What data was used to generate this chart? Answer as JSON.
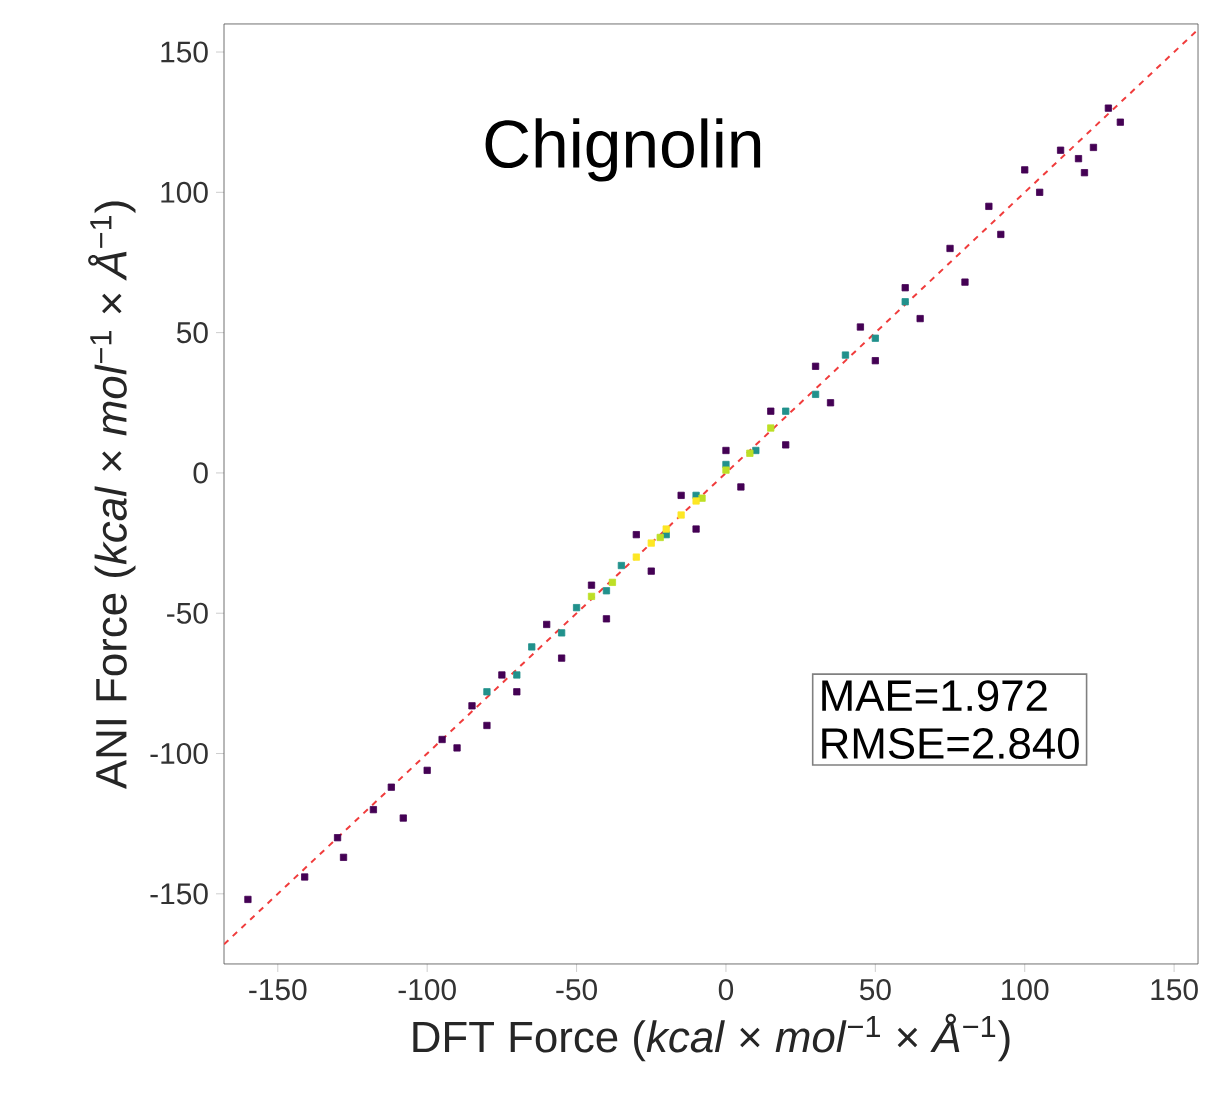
{
  "chart_data": {
    "type": "scatter",
    "title": "Chignolin",
    "xlabel": "DFT Force (*kcal* × *mol*$^{−1}$ × *Å*$^{−1}$)",
    "ylabel": "ANI Force (*kcal* × *mol*$^{−1}$ × *Å*$^{−1}$)",
    "annotations": [
      "MAE=1.972",
      "RMSE=2.840"
    ],
    "xlim": [
      -168,
      158
    ],
    "ylim": [
      -175,
      160
    ],
    "xticks": [
      -150,
      -100,
      -50,
      0,
      50,
      100,
      150
    ],
    "yticks": [
      -150,
      -100,
      -50,
      0,
      50,
      100,
      150
    ],
    "grid": false,
    "marker": "square",
    "series": [
      {
        "color": "#440154",
        "x": [
          -160,
          -141,
          -130,
          -128,
          -118,
          -112,
          -108,
          -100,
          -95,
          -90,
          -85,
          -80,
          -75,
          -70,
          -60,
          -55,
          -45,
          -40,
          -30,
          -25,
          -15,
          -10,
          0,
          5,
          15,
          20,
          30,
          35,
          45,
          50,
          60,
          65,
          75,
          80,
          88,
          92,
          100,
          105,
          112,
          118,
          120,
          123,
          128,
          132
        ],
        "values": [
          -152,
          -144,
          -130,
          -137,
          -120,
          -112,
          -123,
          -106,
          -95,
          -98,
          -83,
          -90,
          -72,
          -78,
          -54,
          -66,
          -40,
          -52,
          -22,
          -35,
          -8,
          -20,
          8,
          -5,
          22,
          10,
          38,
          25,
          52,
          40,
          66,
          55,
          80,
          68,
          95,
          85,
          108,
          100,
          115,
          112,
          107,
          116,
          130,
          125
        ]
      },
      {
        "color": "#21918c",
        "x": [
          -80,
          -70,
          -65,
          -55,
          -50,
          -40,
          -35,
          -20,
          -10,
          0,
          10,
          20,
          30,
          40,
          50,
          60
        ],
        "values": [
          -78,
          -72,
          -62,
          -57,
          -48,
          -42,
          -33,
          -22,
          -8,
          3,
          8,
          22,
          28,
          42,
          48,
          61
        ]
      },
      {
        "color": "#bddf26",
        "x": [
          -45,
          -38,
          -22,
          -8,
          0,
          8,
          15
        ],
        "values": [
          -44,
          -39,
          -23,
          -9,
          1,
          7,
          16
        ]
      },
      {
        "color": "#fde725",
        "x": [
          -30,
          -25,
          -20,
          -15,
          -10
        ],
        "values": [
          -30,
          -25,
          -20,
          -15,
          -10
        ]
      },
      {
        "type": "line",
        "color": "#f03c3c",
        "line_style": "dashed",
        "marker": "none",
        "x": [
          -168,
          158
        ],
        "values": [
          -168,
          158
        ]
      }
    ]
  }
}
